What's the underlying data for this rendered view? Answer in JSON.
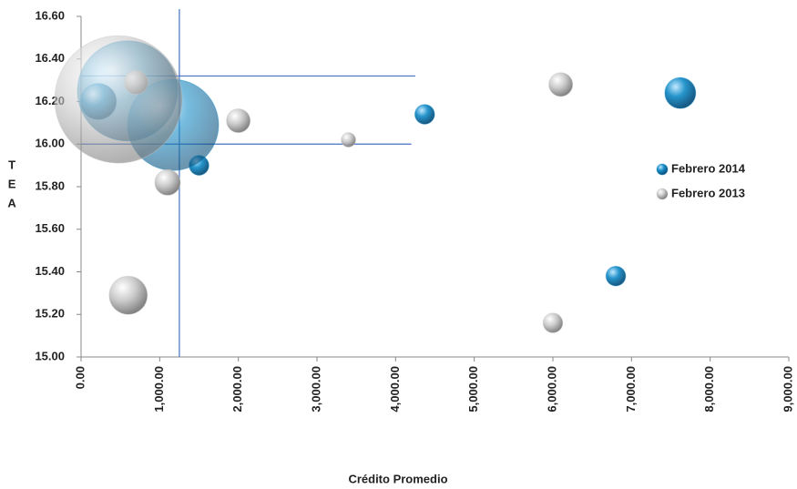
{
  "chart_data": {
    "type": "bubble",
    "xlabel": "Crédito Promedio",
    "ylabel": "TEA",
    "xlim": [
      0,
      9000
    ],
    "ylim": [
      15.0,
      16.6
    ],
    "xticks": [
      {
        "value": 0,
        "label": "0.00"
      },
      {
        "value": 1000,
        "label": "1,000.00"
      },
      {
        "value": 2000,
        "label": "2,000.00"
      },
      {
        "value": 3000,
        "label": "3,000.00"
      },
      {
        "value": 4000,
        "label": "4,000.00"
      },
      {
        "value": 5000,
        "label": "5,000.00"
      },
      {
        "value": 6000,
        "label": "6,000.00"
      },
      {
        "value": 7000,
        "label": "7,000.00"
      },
      {
        "value": 8000,
        "label": "8,000.00"
      },
      {
        "value": 9000,
        "label": "9,000.00"
      }
    ],
    "yticks": [
      {
        "value": 15.0,
        "label": "15.00"
      },
      {
        "value": 15.2,
        "label": "15.20"
      },
      {
        "value": 15.4,
        "label": "15.40"
      },
      {
        "value": 15.6,
        "label": "15.60"
      },
      {
        "value": 15.8,
        "label": "15.80"
      },
      {
        "value": 16.0,
        "label": "16.00"
      },
      {
        "value": 16.2,
        "label": "16.20"
      },
      {
        "value": 16.4,
        "label": "16.40"
      },
      {
        "value": 16.6,
        "label": "16.60"
      }
    ],
    "legend_position": "right",
    "reference_lines": {
      "x": [
        1250
      ],
      "y": [
        16.32,
        16.0
      ],
      "y_xmax": [
        4250,
        4200
      ]
    },
    "series": [
      {
        "name": "Febrero 2014",
        "color": "#1a8fc9",
        "x": [
          7620,
          6800,
          4370,
          1500,
          590,
          1170,
          220
        ],
        "y": [
          16.24,
          15.38,
          16.14,
          15.9,
          16.25,
          16.09,
          16.2
        ],
        "sizes": [
          32,
          13,
          13,
          13,
          336,
          278,
          44
        ]
      },
      {
        "name": "Febrero 2013",
        "color": "#c8c8c8",
        "x": [
          6100,
          6000,
          3400,
          2000,
          1100,
          600,
          700,
          475
        ],
        "y": [
          16.28,
          15.16,
          16.02,
          16.11,
          15.82,
          15.29,
          16.29,
          16.21
        ],
        "sizes": [
          19,
          13,
          7,
          19,
          22,
          49,
          19,
          544
        ]
      }
    ]
  }
}
